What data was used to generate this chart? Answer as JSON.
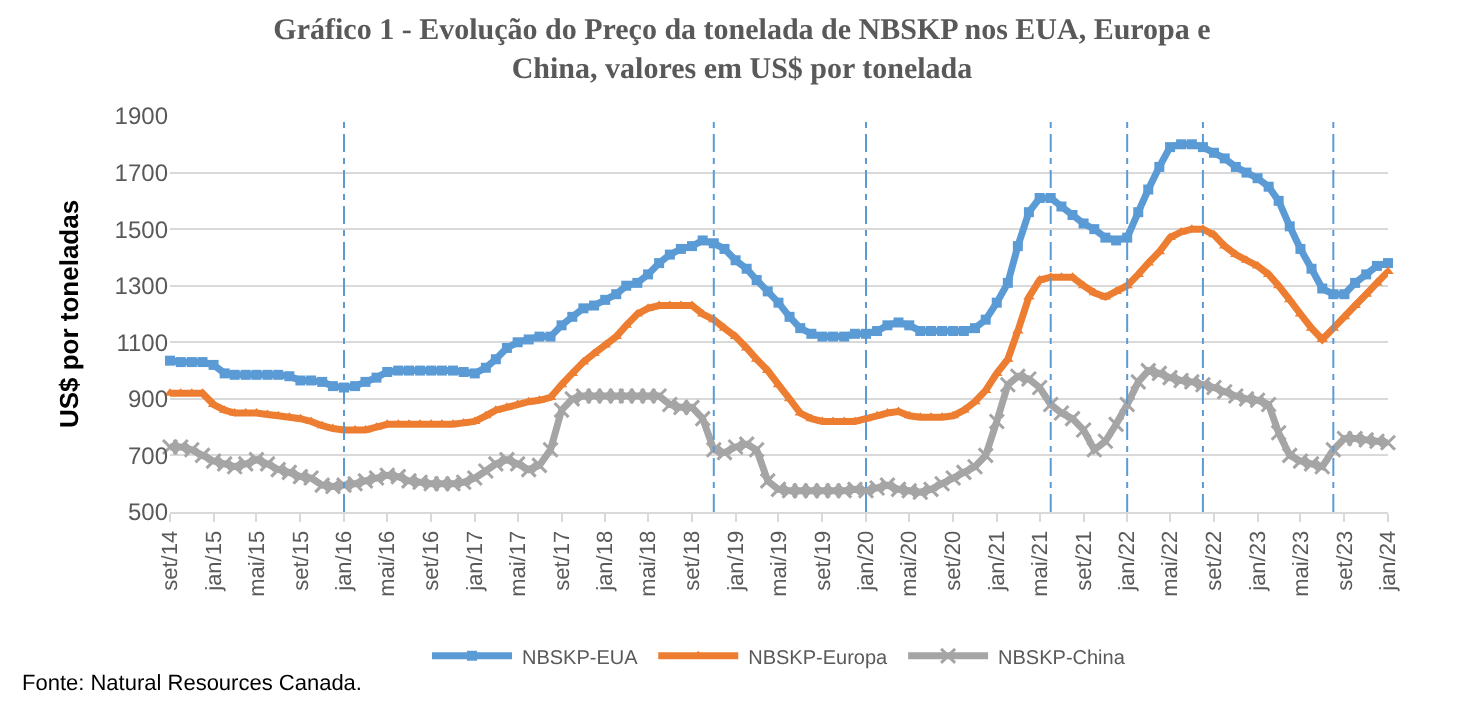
{
  "chart_data": {
    "type": "line",
    "title": "Gráfico 1 - Evolução do Preço da tonelada de NBSKP nos EUA, Europa e China, valores em US$ por tonelada",
    "ylabel": "US$ por toneladas",
    "annotations": [
      "Fonte: Natural Resources Canada."
    ],
    "x": [
      "2014-09",
      "2014-10",
      "2014-11",
      "2014-12",
      "2015-01",
      "2015-02",
      "2015-03",
      "2015-04",
      "2015-05",
      "2015-06",
      "2015-07",
      "2015-08",
      "2015-09",
      "2015-10",
      "2015-11",
      "2015-12",
      "2016-01",
      "2016-02",
      "2016-03",
      "2016-04",
      "2016-05",
      "2016-06",
      "2016-07",
      "2016-08",
      "2016-09",
      "2016-10",
      "2016-11",
      "2016-12",
      "2017-01",
      "2017-02",
      "2017-03",
      "2017-04",
      "2017-05",
      "2017-06",
      "2017-07",
      "2017-08",
      "2017-09",
      "2017-10",
      "2017-11",
      "2017-12",
      "2018-01",
      "2018-02",
      "2018-03",
      "2018-04",
      "2018-05",
      "2018-06",
      "2018-07",
      "2018-08",
      "2018-09",
      "2018-10",
      "2018-11",
      "2018-12",
      "2019-01",
      "2019-02",
      "2019-03",
      "2019-04",
      "2019-05",
      "2019-06",
      "2019-07",
      "2019-08",
      "2019-09",
      "2019-10",
      "2019-11",
      "2019-12",
      "2020-01",
      "2020-02",
      "2020-03",
      "2020-04",
      "2020-05",
      "2020-06",
      "2020-07",
      "2020-08",
      "2020-09",
      "2020-10",
      "2020-11",
      "2020-12",
      "2021-01",
      "2021-02",
      "2021-03",
      "2021-04",
      "2021-05",
      "2021-06",
      "2021-07",
      "2021-08",
      "2021-09",
      "2021-10",
      "2021-11",
      "2021-12",
      "2022-01",
      "2022-02",
      "2022-03",
      "2022-04",
      "2022-05",
      "2022-06",
      "2022-07",
      "2022-08",
      "2022-09",
      "2022-10",
      "2022-11",
      "2022-12",
      "2023-01",
      "2023-02",
      "2023-03",
      "2023-04",
      "2023-05",
      "2023-06",
      "2023-07",
      "2023-08",
      "2023-09",
      "2023-10",
      "2023-11",
      "2023-12",
      "2024-01"
    ],
    "series": [
      {
        "name": "NBSKP-EUA",
        "color": "#5b9bd5",
        "marker": "square",
        "values": [
          1035,
          1030,
          1030,
          1030,
          1020,
          990,
          985,
          985,
          985,
          985,
          985,
          980,
          965,
          965,
          960,
          945,
          940,
          945,
          960,
          975,
          995,
          1000,
          1000,
          1000,
          1000,
          1000,
          1000,
          995,
          990,
          1010,
          1040,
          1080,
          1100,
          1110,
          1120,
          1120,
          1160,
          1190,
          1220,
          1230,
          1250,
          1270,
          1300,
          1310,
          1340,
          1380,
          1410,
          1430,
          1440,
          1460,
          1450,
          1430,
          1390,
          1360,
          1320,
          1280,
          1240,
          1190,
          1150,
          1130,
          1120,
          1120,
          1120,
          1130,
          1130,
          1140,
          1160,
          1170,
          1160,
          1140,
          1140,
          1140,
          1140,
          1140,
          1150,
          1180,
          1240,
          1310,
          1440,
          1560,
          1610,
          1610,
          1580,
          1550,
          1520,
          1500,
          1470,
          1460,
          1470,
          1560,
          1640,
          1720,
          1790,
          1800,
          1800,
          1790,
          1770,
          1750,
          1720,
          1700,
          1680,
          1650,
          1600,
          1510,
          1430,
          1360,
          1290,
          1270,
          1270,
          1310,
          1340,
          1370,
          1380
        ]
      },
      {
        "name": "NBSKP-Europa",
        "color": "#ed7d31",
        "marker": "triangle",
        "values": [
          920,
          920,
          920,
          920,
          880,
          860,
          850,
          850,
          850,
          845,
          840,
          835,
          830,
          820,
          805,
          795,
          790,
          790,
          790,
          800,
          810,
          810,
          810,
          810,
          810,
          810,
          810,
          815,
          820,
          840,
          860,
          870,
          880,
          890,
          895,
          905,
          950,
          990,
          1030,
          1060,
          1090,
          1120,
          1160,
          1200,
          1220,
          1230,
          1230,
          1230,
          1230,
          1200,
          1180,
          1150,
          1120,
          1080,
          1040,
          1000,
          950,
          900,
          850,
          830,
          820,
          820,
          820,
          820,
          830,
          840,
          850,
          855,
          840,
          835,
          835,
          835,
          840,
          860,
          890,
          930,
          990,
          1040,
          1140,
          1260,
          1320,
          1330,
          1330,
          1330,
          1300,
          1275,
          1260,
          1280,
          1300,
          1340,
          1380,
          1420,
          1470,
          1490,
          1500,
          1500,
          1480,
          1440,
          1410,
          1390,
          1370,
          1340,
          1300,
          1250,
          1200,
          1150,
          1110,
          1150,
          1190,
          1230,
          1270,
          1310,
          1350
        ]
      },
      {
        "name": "NBSKP-China",
        "color": "#a5a5a5",
        "marker": "cross",
        "values": [
          730,
          730,
          720,
          700,
          680,
          670,
          660,
          670,
          685,
          670,
          650,
          640,
          625,
          620,
          595,
          590,
          595,
          600,
          610,
          620,
          630,
          625,
          610,
          605,
          600,
          600,
          600,
          605,
          620,
          645,
          670,
          685,
          670,
          650,
          665,
          720,
          860,
          900,
          910,
          910,
          910,
          910,
          910,
          910,
          910,
          910,
          880,
          870,
          870,
          830,
          720,
          710,
          730,
          740,
          720,
          610,
          580,
          575,
          575,
          575,
          575,
          575,
          575,
          580,
          575,
          585,
          595,
          580,
          575,
          570,
          580,
          600,
          620,
          640,
          660,
          700,
          820,
          950,
          980,
          970,
          940,
          880,
          850,
          830,
          790,
          720,
          750,
          810,
          880,
          960,
          1000,
          990,
          975,
          965,
          960,
          950,
          940,
          925,
          910,
          900,
          895,
          880,
          780,
          700,
          680,
          670,
          660,
          720,
          760,
          760,
          755,
          750,
          745
        ]
      }
    ],
    "xlim": [
      "2014-09",
      "2024-01"
    ],
    "xticks": [
      {
        "value": "2014-09",
        "label": "set/14"
      },
      {
        "value": "2015-01",
        "label": "jan/15"
      },
      {
        "value": "2015-05",
        "label": "mai/15"
      },
      {
        "value": "2015-09",
        "label": "set/15"
      },
      {
        "value": "2016-01",
        "label": "jan/16"
      },
      {
        "value": "2016-05",
        "label": "mai/16"
      },
      {
        "value": "2016-09",
        "label": "set/16"
      },
      {
        "value": "2017-01",
        "label": "jan/17"
      },
      {
        "value": "2017-05",
        "label": "mai/17"
      },
      {
        "value": "2017-09",
        "label": "set/17"
      },
      {
        "value": "2018-01",
        "label": "jan/18"
      },
      {
        "value": "2018-05",
        "label": "mai/18"
      },
      {
        "value": "2018-09",
        "label": "set/18"
      },
      {
        "value": "2019-01",
        "label": "jan/19"
      },
      {
        "value": "2019-05",
        "label": "mai/19"
      },
      {
        "value": "2019-09",
        "label": "set/19"
      },
      {
        "value": "2020-01",
        "label": "jan/20"
      },
      {
        "value": "2020-05",
        "label": "mai/20"
      },
      {
        "value": "2020-09",
        "label": "set/20"
      },
      {
        "value": "2021-01",
        "label": "jan/21"
      },
      {
        "value": "2021-05",
        "label": "mai/21"
      },
      {
        "value": "2021-09",
        "label": "set/21"
      },
      {
        "value": "2022-01",
        "label": "jan/22"
      },
      {
        "value": "2022-05",
        "label": "mai/22"
      },
      {
        "value": "2022-09",
        "label": "set/22"
      },
      {
        "value": "2023-01",
        "label": "jan/23"
      },
      {
        "value": "2023-05",
        "label": "mai/23"
      },
      {
        "value": "2023-09",
        "label": "set/23"
      },
      {
        "value": "2024-01",
        "label": "jan/24"
      }
    ],
    "ylim": [
      500,
      1900
    ],
    "yticks": [
      500,
      700,
      900,
      1100,
      1300,
      1500,
      1700,
      1900
    ],
    "ref_lines": [
      {
        "axis": "x",
        "value": "2016-01",
        "color": "#5b9bd5",
        "line_style": "dashed"
      },
      {
        "axis": "x",
        "value": "2018-11",
        "color": "#5b9bd5",
        "line_style": "dashed"
      },
      {
        "axis": "x",
        "value": "2020-01",
        "color": "#5b9bd5",
        "line_style": "dashed"
      },
      {
        "axis": "x",
        "value": "2021-06",
        "color": "#5b9bd5",
        "line_style": "dashed"
      },
      {
        "axis": "x",
        "value": "2022-01",
        "color": "#5b9bd5",
        "line_style": "dashed"
      },
      {
        "axis": "x",
        "value": "2022-08",
        "color": "#5b9bd5",
        "line_style": "dashed"
      },
      {
        "axis": "x",
        "value": "2023-08",
        "color": "#5b9bd5",
        "line_style": "dashed"
      }
    ],
    "grid": "y",
    "legend": "bottom",
    "line_style": "solid"
  }
}
